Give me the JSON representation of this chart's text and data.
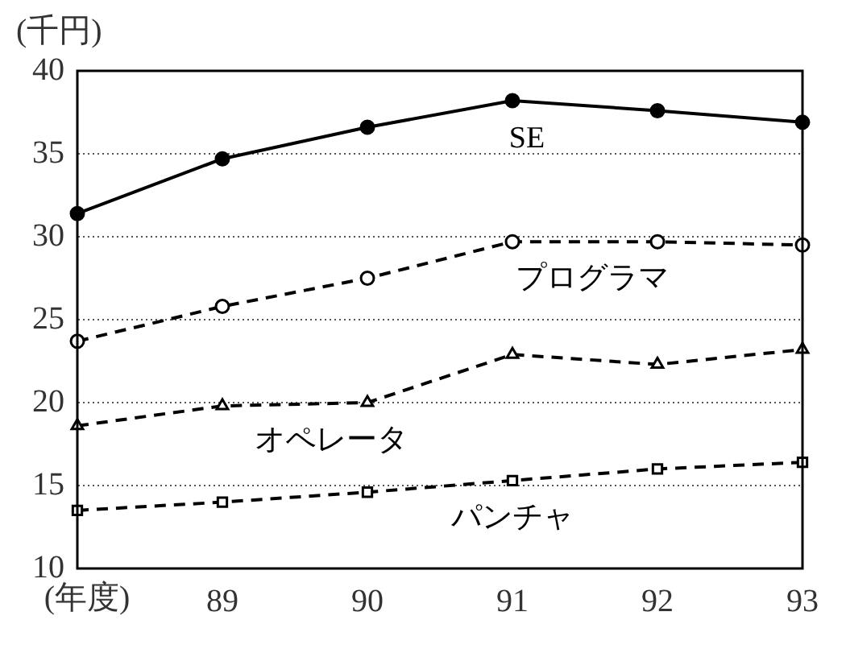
{
  "chart_data": {
    "type": "line",
    "xlabel": "(年度)",
    "ylabel": "(千円)",
    "categories": [
      null,
      "89",
      "90",
      "91",
      "92",
      "93"
    ],
    "series": [
      {
        "name": "SE",
        "color": "#000000",
        "marker": "circle",
        "line_style": "solid",
        "values": [
          31.4,
          34.7,
          36.6,
          38.2,
          37.6,
          36.9
        ]
      },
      {
        "name": "プログラマ",
        "color": "#000000",
        "marker": "circle",
        "line_style": "dashed",
        "values": [
          23.7,
          25.8,
          27.5,
          29.7,
          29.7,
          29.5
        ]
      },
      {
        "name": "オペレータ",
        "color": "#000000",
        "marker": "triangle",
        "line_style": "dashed",
        "values": [
          18.6,
          19.8,
          20.0,
          22.9,
          22.3,
          23.2
        ]
      },
      {
        "name": "パンチャ",
        "color": "#000000",
        "marker": "square",
        "line_style": "dashed",
        "values": [
          13.5,
          14.0,
          14.6,
          15.3,
          16.0,
          16.4
        ]
      }
    ],
    "ylim": [
      10,
      40
    ],
    "yticks": [
      10,
      15,
      20,
      25,
      30,
      35,
      40
    ],
    "grid": "y",
    "legend": false
  }
}
